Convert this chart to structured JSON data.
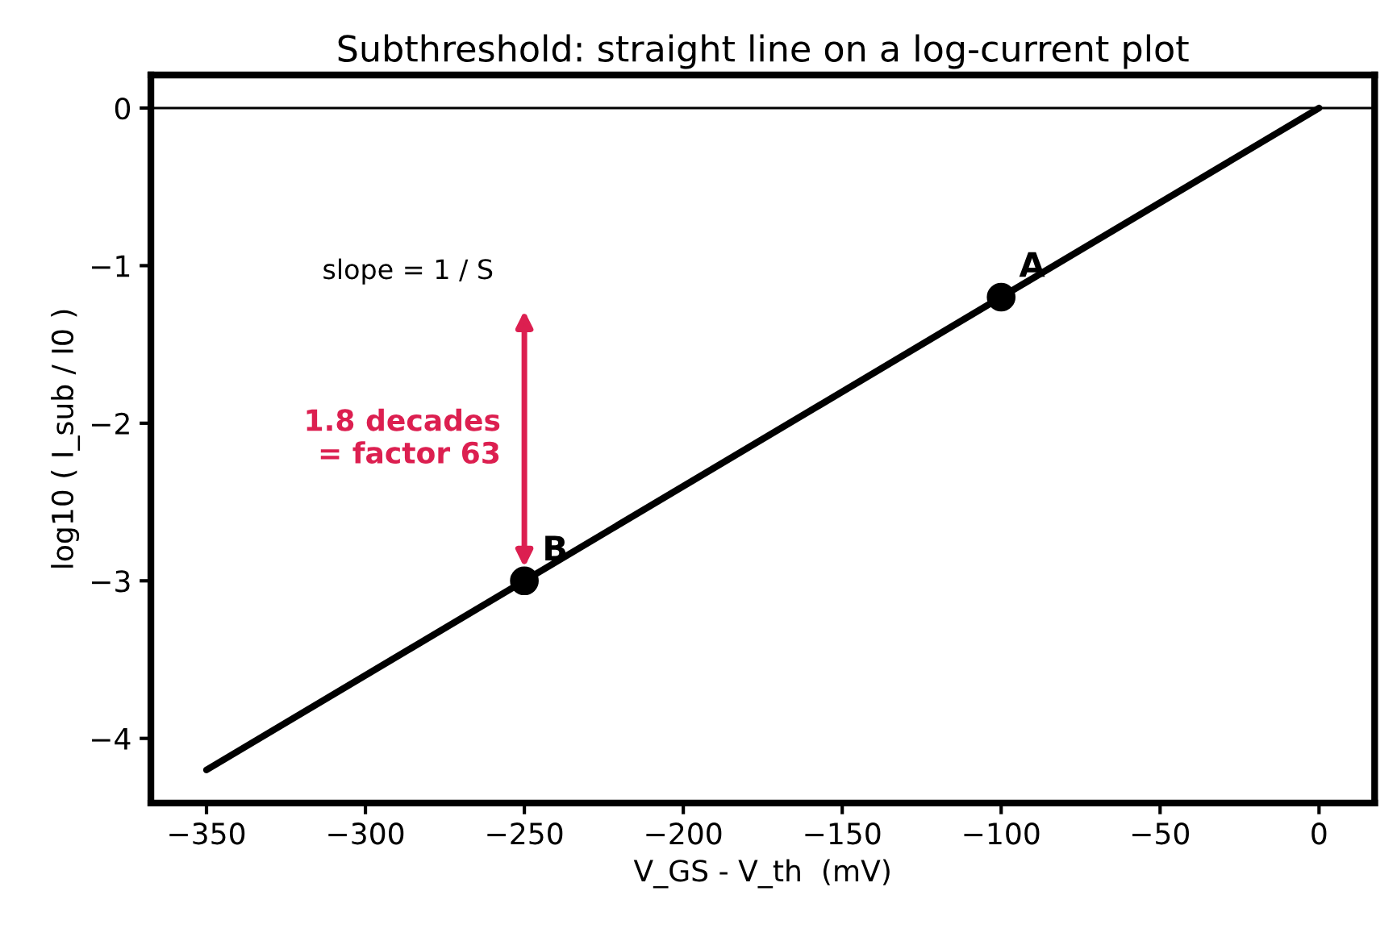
{
  "chart_data": {
    "type": "line",
    "title": "Subthreshold: straight line on a log-current plot",
    "xlabel": "V_GS - V_th  (mV)",
    "ylabel": "log10 ( I_sub / I0 )",
    "series": [
      {
        "color": "#000000",
        "x": [
          -350,
          0
        ],
        "values": [
          -4.2,
          0
        ]
      },
      {
        "type": "scatter",
        "color": "#000000",
        "x": [
          -100,
          -250
        ],
        "values": [
          -1.2,
          -3
        ]
      }
    ],
    "annotations": [
      {
        "text": "A",
        "x": -100,
        "y": -1.2
      },
      {
        "text": "B",
        "x": -250,
        "y": -3
      },
      "slope = 1 / S",
      "1.8 decades\n= factor 63"
    ],
    "ref_lines": [
      {
        "axis": "y",
        "value": 0,
        "color": "#000000"
      }
    ],
    "xlim": [
      -367.5,
      17.5
    ],
    "ylim": [
      -4.41,
      0.21
    ],
    "xticks": [
      {
        "value": -350,
        "label": "−350"
      },
      {
        "value": -300,
        "label": "−300"
      },
      {
        "value": -250,
        "label": "−250"
      },
      {
        "value": -200,
        "label": "−200"
      },
      {
        "value": -150,
        "label": "−150"
      },
      {
        "value": -100,
        "label": "−100"
      },
      {
        "value": -50,
        "label": "−50"
      },
      0
    ],
    "yticks": [
      {
        "value": -4,
        "label": "−4"
      },
      {
        "value": -3,
        "label": "−3"
      },
      {
        "value": -2,
        "label": "−2"
      },
      {
        "value": -1,
        "label": "−1"
      },
      0
    ],
    "grid": false,
    "legend": false
  }
}
